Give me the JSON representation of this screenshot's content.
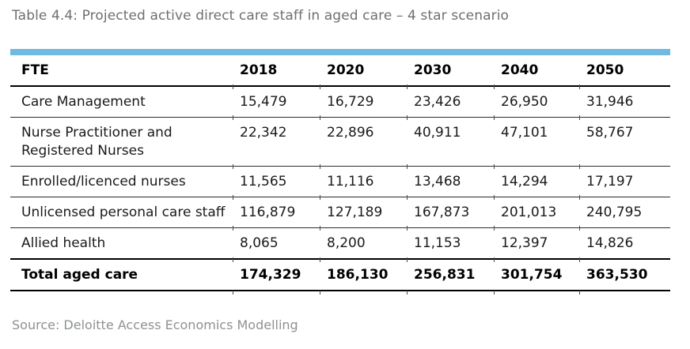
{
  "title": "Table 4.4: Projected active direct care staff in aged care – 4 star scenario",
  "source": "Source: Deloitte Access Economics Modelling",
  "colors": {
    "accent_bar": "#70b9e1",
    "title_text": "#6c7072",
    "source_text": "#8e9193",
    "body_text": "#1a1a1a",
    "border": "#000000"
  },
  "table": {
    "columns": [
      "FTE",
      "2018",
      "2020",
      "2030",
      "2040",
      "2050"
    ],
    "rows": [
      {
        "label": "Care Management",
        "values": [
          "15,479",
          "16,729",
          "23,426",
          "26,950",
          "31,946"
        ]
      },
      {
        "label": "Nurse Practitioner and Registered Nurses",
        "values": [
          "22,342",
          "22,896",
          "40,911",
          "47,101",
          "58,767"
        ]
      },
      {
        "label": "Enrolled/licenced nurses",
        "values": [
          "11,565",
          "11,116",
          "13,468",
          "14,294",
          "17,197"
        ]
      },
      {
        "label": "Unlicensed personal care staff",
        "values": [
          "116,879",
          "127,189",
          "167,873",
          "201,013",
          "240,795"
        ]
      },
      {
        "label": "Allied health",
        "values": [
          "8,065",
          "8,200",
          "11,153",
          "12,397",
          "14,826"
        ]
      },
      {
        "label": "Total aged care",
        "is_total": true,
        "values": [
          "174,329",
          "186,130",
          "256,831",
          "301,754",
          "363,530"
        ]
      }
    ]
  }
}
